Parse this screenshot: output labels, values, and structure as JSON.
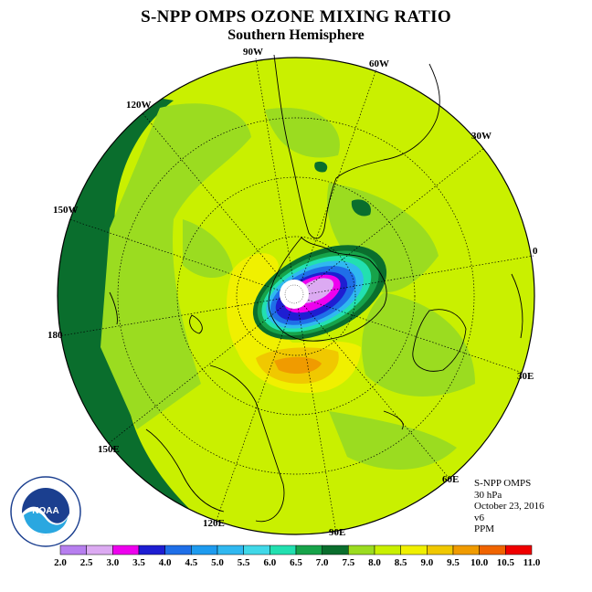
{
  "title": "S-NPP OMPS OZONE MIXING RATIO",
  "subtitle": "Southern Hemisphere",
  "longitude_labels": [
    "90W",
    "60W",
    "30W",
    "0",
    "30E",
    "60E",
    "90E",
    "120E",
    "150E",
    "180",
    "150W",
    "120W"
  ],
  "info": {
    "instrument": "S-NPP OMPS",
    "level": "30 hPa",
    "date": "October 23, 2016",
    "version": "v6",
    "units": "PPM"
  },
  "colorbar": {
    "ticks": [
      "2.0",
      "2.5",
      "3.0",
      "3.5",
      "4.0",
      "4.5",
      "5.0",
      "5.5",
      "6.0",
      "6.5",
      "7.0",
      "7.5",
      "8.0",
      "8.5",
      "9.0",
      "9.5",
      "10.0",
      "10.5",
      "11.0"
    ],
    "colors": [
      "#b77fef",
      "#dcaaf2",
      "#ee00ee",
      "#1e1ed2",
      "#1f6fe8",
      "#1e9bef",
      "#30b8f0",
      "#40d8e8",
      "#22e0b0",
      "#17a34a",
      "#0a6e2d",
      "#9bdc20",
      "#c9f000",
      "#f0f000",
      "#f0c800",
      "#f09b00",
      "#f06400",
      "#f00000",
      "#8c5a3c"
    ]
  },
  "logo": {
    "text": "NOAA",
    "ring_text": "NATIONAL OCEANIC AND ATMOSPHERIC ADMINISTRATION",
    "ring_text_bottom": "U.S. DEPARTMENT OF COMMERCE"
  }
}
